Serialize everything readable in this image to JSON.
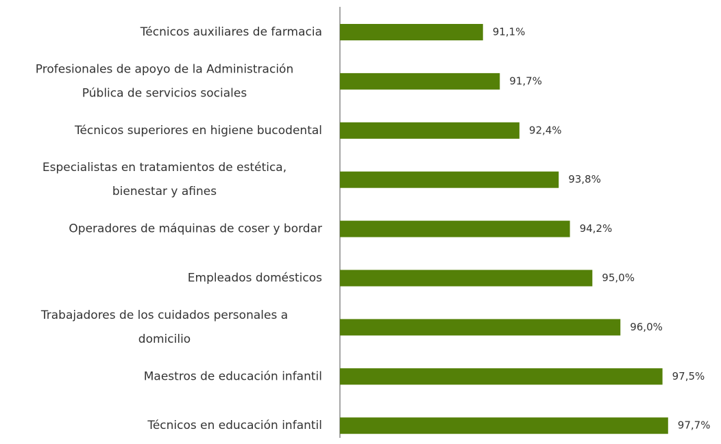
{
  "chart_data": {
    "type": "hbar",
    "categories": [
      [
        "Técnicos auxiliares de farmacia"
      ],
      [
        "Profesionales de apoyo de la Administración",
        "Pública de servicios sociales"
      ],
      [
        "Técnicos superiores en higiene bucodental"
      ],
      [
        "Especialistas en tratamientos de estética,",
        "bienestar y afines"
      ],
      [
        "Operadores de máquinas de coser y bordar"
      ],
      [
        "Empleados domésticos"
      ],
      [
        "Trabajadores de los cuidados personales a",
        "domicilio"
      ],
      [
        "Maestros de educación infantil"
      ],
      [
        "Técnicos en educación infantil"
      ]
    ],
    "values": [
      91.1,
      91.7,
      92.4,
      93.8,
      94.2,
      95.0,
      96.0,
      97.5,
      97.7
    ],
    "value_labels": [
      "91,1%",
      "91,7%",
      "92,4%",
      "93,8%",
      "94,2%",
      "95,0%",
      "96,0%",
      "97,5%",
      "97,7%"
    ],
    "color": "#548008",
    "xlim": [
      86,
      99
    ]
  }
}
